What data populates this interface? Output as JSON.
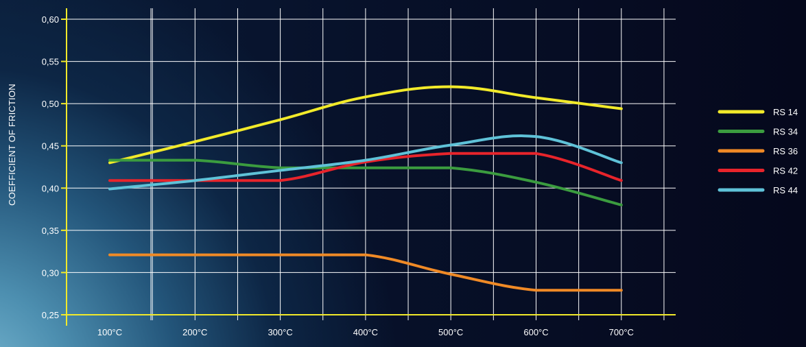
{
  "chart_data": {
    "type": "line",
    "ylabel": "COEFFICIENT OF FRICTION",
    "xlabel": "",
    "ylim": [
      0.25,
      0.6
    ],
    "y_ticks": [
      "0,25",
      "0,30",
      "0,35",
      "0,40",
      "0,45",
      "0,50",
      "0,55",
      "0,60"
    ],
    "y_tick_values": [
      0.25,
      0.3,
      0.35,
      0.4,
      0.45,
      0.5,
      0.55,
      0.6
    ],
    "x_ticks": [
      "100°C",
      "200°C",
      "300°C",
      "400°C",
      "500°C",
      "600°C",
      "700°C"
    ],
    "x_tick_values": [
      100,
      200,
      300,
      400,
      500,
      600,
      700
    ],
    "xlim": [
      50,
      750
    ],
    "grid": true,
    "legend_position": "right",
    "series": [
      {
        "name": "RS 14",
        "color": "#f2ea2a",
        "x": [
          100,
          200,
          300,
          400,
          500,
          600,
          700
        ],
        "y": [
          0.43,
          0.455,
          0.481,
          0.508,
          0.52,
          0.507,
          0.494
        ]
      },
      {
        "name": "RS 34",
        "color": "#3b9c3f",
        "x": [
          100,
          200,
          300,
          400,
          500,
          600,
          700
        ],
        "y": [
          0.433,
          0.433,
          0.424,
          0.424,
          0.424,
          0.407,
          0.38
        ]
      },
      {
        "name": "RS 36",
        "color": "#f08a26",
        "x": [
          100,
          200,
          300,
          400,
          500,
          600,
          700
        ],
        "y": [
          0.321,
          0.321,
          0.321,
          0.321,
          0.298,
          0.279,
          0.279
        ]
      },
      {
        "name": "RS 42",
        "color": "#e8242b",
        "x": [
          100,
          200,
          300,
          400,
          500,
          600,
          700
        ],
        "y": [
          0.409,
          0.409,
          0.409,
          0.431,
          0.441,
          0.441,
          0.409
        ]
      },
      {
        "name": "RS 44",
        "color": "#5fc2d8",
        "x": [
          100,
          200,
          300,
          400,
          500,
          600,
          700
        ],
        "y": [
          0.399,
          0.409,
          0.421,
          0.433,
          0.451,
          0.461,
          0.43
        ]
      }
    ]
  }
}
